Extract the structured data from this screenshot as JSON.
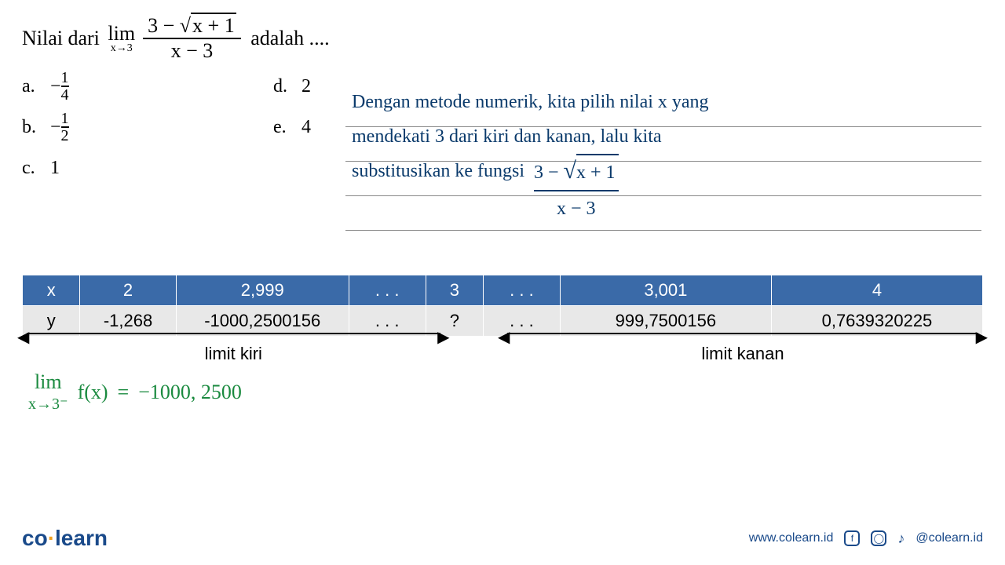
{
  "problem": {
    "prefix": "Nilai dari",
    "lim_text": "lim",
    "lim_sub": "x→3",
    "numerator_left": "3 −",
    "sqrt_sym": "√",
    "sqrt_radicand": "x + 1",
    "denominator": "x − 3",
    "suffix": "adalah ...."
  },
  "options": {
    "a": {
      "letter": "a.",
      "neg": "−",
      "num": "1",
      "den": "4"
    },
    "b": {
      "letter": "b.",
      "neg": "−",
      "num": "1",
      "den": "2"
    },
    "c": {
      "letter": "c.",
      "val": "1"
    },
    "d": {
      "letter": "d.",
      "val": "2"
    },
    "e": {
      "letter": "e.",
      "val": "4"
    }
  },
  "handwriting": {
    "line1": "Dengan metode numerik, kita pilih nilai x yang",
    "line2": "mendekati 3 dari kiri dan kanan, lalu kita",
    "line3_a": "substitusikan ke fungsi",
    "formula_num_a": "3 −",
    "formula_sqrt": "√",
    "formula_rad": "x + 1",
    "formula_den": "x − 3",
    "color": "#0a3a6b"
  },
  "table": {
    "header_bg": "#3a6aa8",
    "header_fg": "#ffffff",
    "row_bg": "#e8e8e8",
    "headers": [
      "x",
      "2",
      "2,999",
      ". . .",
      "3",
      ". . .",
      "3,001",
      "4"
    ],
    "row_label": "y",
    "row": [
      "-1,268",
      "-1000,2500156",
      ". . .",
      "?",
      ". . .",
      "999,7500156",
      "0,7639320225"
    ],
    "col_widths_pct": [
      6,
      10,
      18,
      8,
      6,
      8,
      22,
      22
    ]
  },
  "arrows": {
    "left_label": "limit kiri",
    "right_label": "limit kanan"
  },
  "green": {
    "lim": "lim",
    "sub": "x→3⁻",
    "fx": "f(x)",
    "eq": "=",
    "val": "−1000, 2500",
    "color": "#1a8a3f"
  },
  "footer": {
    "logo_a": "co",
    "logo_dot": "·",
    "logo_b": "learn",
    "url": "www.colearn.id",
    "handle": "@colearn.id"
  }
}
